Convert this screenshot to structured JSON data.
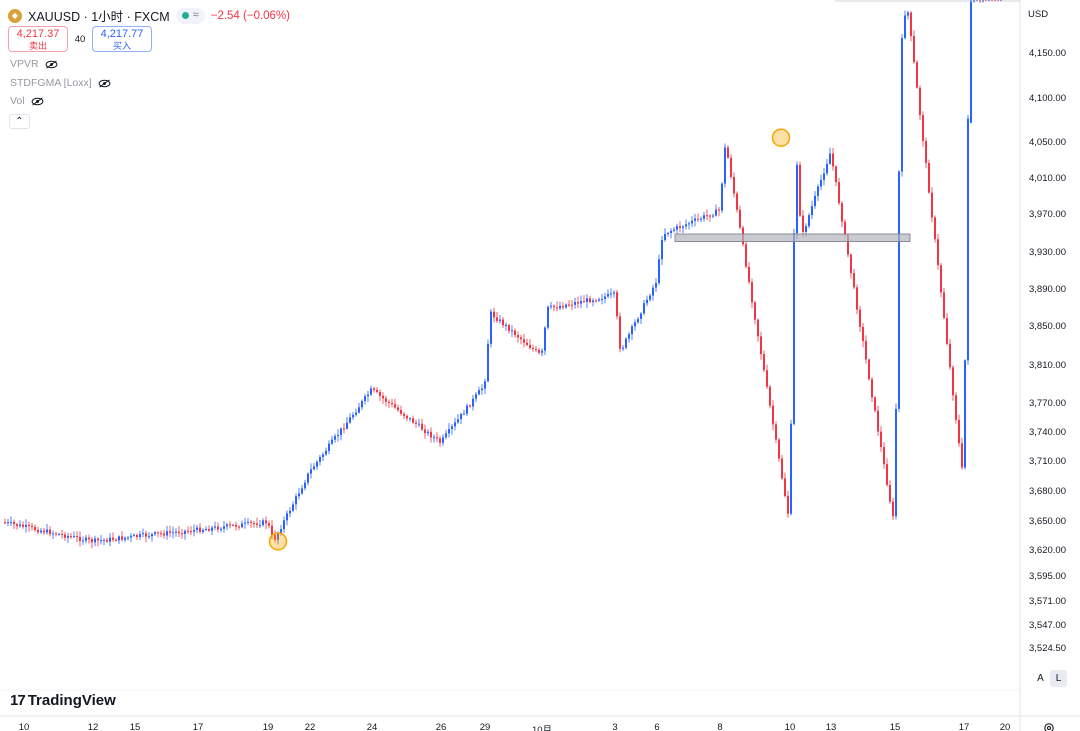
{
  "header": {
    "symbol_title": "XAUUSD · 1小时 · FXCM",
    "change": "−2.54 (−0.06%)",
    "status_wave": "≈",
    "gold_icon": "gold-coin-icon"
  },
  "trade": {
    "sell_price": "4,217.37",
    "sell_label": "卖出",
    "spread": "40",
    "buy_price": "4,217.77",
    "buy_label": "买入"
  },
  "indicators": [
    {
      "name": "VPVR"
    },
    {
      "name": "STDFGMA [Loxx]"
    },
    {
      "name": "Vol"
    }
  ],
  "price_axis": {
    "currency": "USD",
    "labels": [
      "4,150.00",
      "4,100.00",
      "4,050.00",
      "4,010.00",
      "3,970.00",
      "3,930.00",
      "3,890.00",
      "3,850.00",
      "3,810.00",
      "3,770.00",
      "3,740.00",
      "3,710.00",
      "3,680.00",
      "3,650.00",
      "3,620.00",
      "3,595.00",
      "3,571.00",
      "3,547.00",
      "3,524.50"
    ]
  },
  "time_axis": {
    "labels": [
      "10",
      "12",
      "15",
      "17",
      "19",
      "22",
      "24",
      "26",
      "29",
      "10月",
      "3",
      "6",
      "8",
      "10",
      "13",
      "15",
      "17",
      "20"
    ]
  },
  "controls": {
    "scale_auto": "A",
    "scale_log": "L"
  },
  "branding": {
    "logo_mark": "17",
    "logo_text": "TradingView"
  },
  "colors": {
    "up": "#2962ff",
    "down": "#f23645",
    "marker": "#f7a600",
    "zone": "#b2b5be"
  },
  "chart_data": {
    "type": "candlestick",
    "symbol": "XAUUSD",
    "interval": "1小时",
    "ylim": [
      3500,
      4215
    ],
    "y_scale": "log",
    "x": [
      "10",
      "12",
      "15",
      "17",
      "19",
      "22",
      "24",
      "26",
      "29",
      "10月",
      "3",
      "6",
      "8",
      "10",
      "13",
      "15",
      "17",
      "20"
    ],
    "approx_path": [
      {
        "x": "10",
        "y": 3650
      },
      {
        "x": "12",
        "y": 3630
      },
      {
        "x": "15",
        "y": 3645
      },
      {
        "x": "17",
        "y": 3690
      },
      {
        "x": "19",
        "y": 3650
      },
      {
        "x": "19",
        "y": 3630
      },
      {
        "x": "22",
        "y": 3700
      },
      {
        "x": "24",
        "y": 3785
      },
      {
        "x": "26",
        "y": 3730
      },
      {
        "x": "29",
        "y": 3790
      },
      {
        "x": "29",
        "y": 3865
      },
      {
        "x": "10月",
        "y": 3820
      },
      {
        "x": "10月",
        "y": 3870
      },
      {
        "x": "3",
        "y": 3885
      },
      {
        "x": "3",
        "y": 3825
      },
      {
        "x": "6",
        "y": 3900
      },
      {
        "x": "6",
        "y": 3950
      },
      {
        "x": "8",
        "y": 3975
      },
      {
        "x": "8",
        "y": 4050
      },
      {
        "x": "10",
        "y": 4055
      },
      {
        "x": "10",
        "y": 3945
      },
      {
        "x": "10",
        "y": 3965
      },
      {
        "x": "13",
        "y": 4040
      },
      {
        "x": "15",
        "y": 4150
      },
      {
        "x": "15",
        "y": 4210
      },
      {
        "x": "17",
        "y": 4215
      },
      {
        "x": "20",
        "y": 4217
      }
    ],
    "annotations": [
      {
        "type": "circle",
        "x": "19",
        "y": 3630
      },
      {
        "type": "circle",
        "x": "10",
        "y": 4056
      },
      {
        "type": "rectangle",
        "x_from": "6",
        "x_to": "15",
        "y_from": 3942,
        "y_to": 3950
      }
    ]
  }
}
